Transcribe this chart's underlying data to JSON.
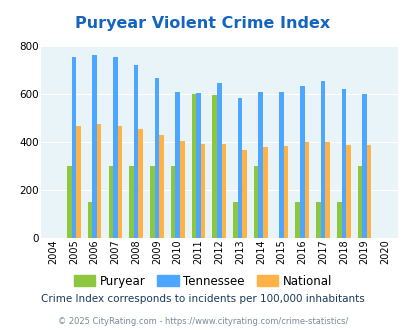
{
  "title": "Puryear Violent Crime Index",
  "years": [
    "2004",
    "2005",
    "2006",
    "2007",
    "2008",
    "2009",
    "2010",
    "2011",
    "2012",
    "2013",
    "2014",
    "2015",
    "2016",
    "2017",
    "2018",
    "2019",
    "2020"
  ],
  "puryear": [
    0,
    300,
    150,
    300,
    300,
    300,
    300,
    600,
    595,
    150,
    300,
    0,
    150,
    150,
    150,
    300,
    0
  ],
  "tennessee": [
    0,
    755,
    765,
    755,
    723,
    668,
    610,
    605,
    645,
    585,
    607,
    610,
    633,
    653,
    620,
    600,
    0
  ],
  "national": [
    0,
    468,
    474,
    467,
    455,
    429,
    402,
    390,
    390,
    368,
    378,
    383,
    400,
    400,
    385,
    385,
    0
  ],
  "puryear_color": "#8dc63f",
  "tennessee_color": "#4da6ff",
  "national_color": "#ffb347",
  "bg_color": "#e8f4f8",
  "title_color": "#1565c0",
  "footer_color": "#1a3a5c",
  "copyright_color": "#7a8a9a",
  "copyright_link_color": "#4a90d9",
  "footer_text": "Crime Index corresponds to incidents per 100,000 inhabitants",
  "copyright_text": "© 2025 CityRating.com - https://www.cityrating.com/crime-statistics/",
  "ylim": [
    0,
    800
  ],
  "yticks": [
    0,
    200,
    400,
    600,
    800
  ],
  "bar_width": 0.22
}
